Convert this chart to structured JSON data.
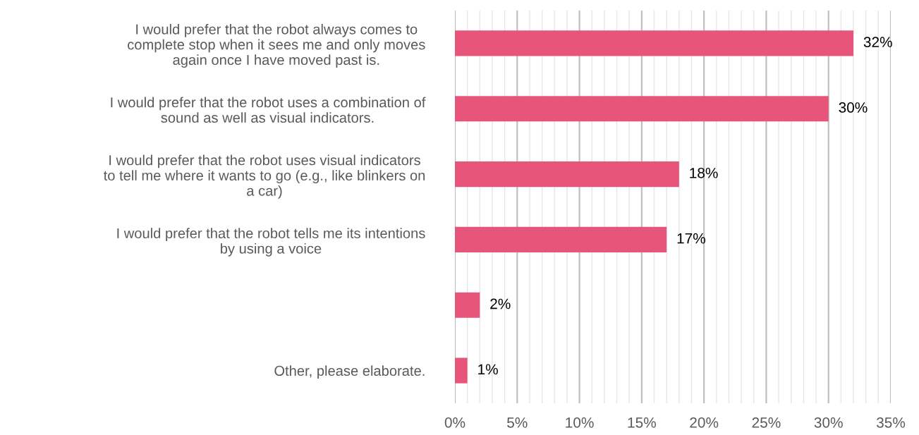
{
  "chart_data": {
    "type": "bar",
    "orientation": "horizontal",
    "categories": [
      "I would prefer that the robot always comes to\ncomplete stop when it sees me and only moves\nagain once I have moved past is.",
      "I would prefer that the robot uses a combination of\nsound as well as visual indicators.",
      "I would prefer that the robot uses visual indicators\nto tell me where it wants to go (e.g., like blinkers on\na car)",
      "I would prefer that the robot tells me its intentions\nby using a voice",
      null,
      "Other, please elaborate."
    ],
    "values": [
      32,
      30,
      18,
      17,
      2,
      1
    ],
    "value_labels": [
      "32%",
      "30%",
      "18%",
      "17%",
      "2%",
      "1%"
    ],
    "color": "#e8557a",
    "xlim": [
      0,
      35
    ],
    "xticks": [
      {
        "value": 0,
        "label": "0%"
      },
      {
        "value": 1,
        "label": null
      },
      {
        "value": 2,
        "label": null
      },
      {
        "value": 3,
        "label": null
      },
      {
        "value": 4,
        "label": null
      },
      {
        "value": 5,
        "label": "5%"
      },
      {
        "value": 6,
        "label": null
      },
      {
        "value": 7,
        "label": null
      },
      {
        "value": 8,
        "label": null
      },
      {
        "value": 9,
        "label": null
      },
      {
        "value": 10,
        "label": "10%"
      },
      {
        "value": 11,
        "label": null
      },
      {
        "value": 12,
        "label": null
      },
      {
        "value": 13,
        "label": null
      },
      {
        "value": 14,
        "label": null
      },
      {
        "value": 15,
        "label": "15%"
      },
      {
        "value": 16,
        "label": null
      },
      {
        "value": 17,
        "label": null
      },
      {
        "value": 18,
        "label": null
      },
      {
        "value": 19,
        "label": null
      },
      {
        "value": 20,
        "label": "20%"
      },
      {
        "value": 21,
        "label": null
      },
      {
        "value": 22,
        "label": null
      },
      {
        "value": 23,
        "label": null
      },
      {
        "value": 24,
        "label": null
      },
      {
        "value": 25,
        "label": "25%"
      },
      {
        "value": 26,
        "label": null
      },
      {
        "value": 27,
        "label": null
      },
      {
        "value": 28,
        "label": null
      },
      {
        "value": 29,
        "label": null
      },
      {
        "value": 30,
        "label": "30%"
      },
      {
        "value": 31,
        "label": null
      },
      {
        "value": 32,
        "label": null
      },
      {
        "value": 33,
        "label": null
      },
      {
        "value": 34,
        "label": null
      },
      {
        "value": 35,
        "label": "35%"
      }
    ],
    "grid": "x"
  }
}
